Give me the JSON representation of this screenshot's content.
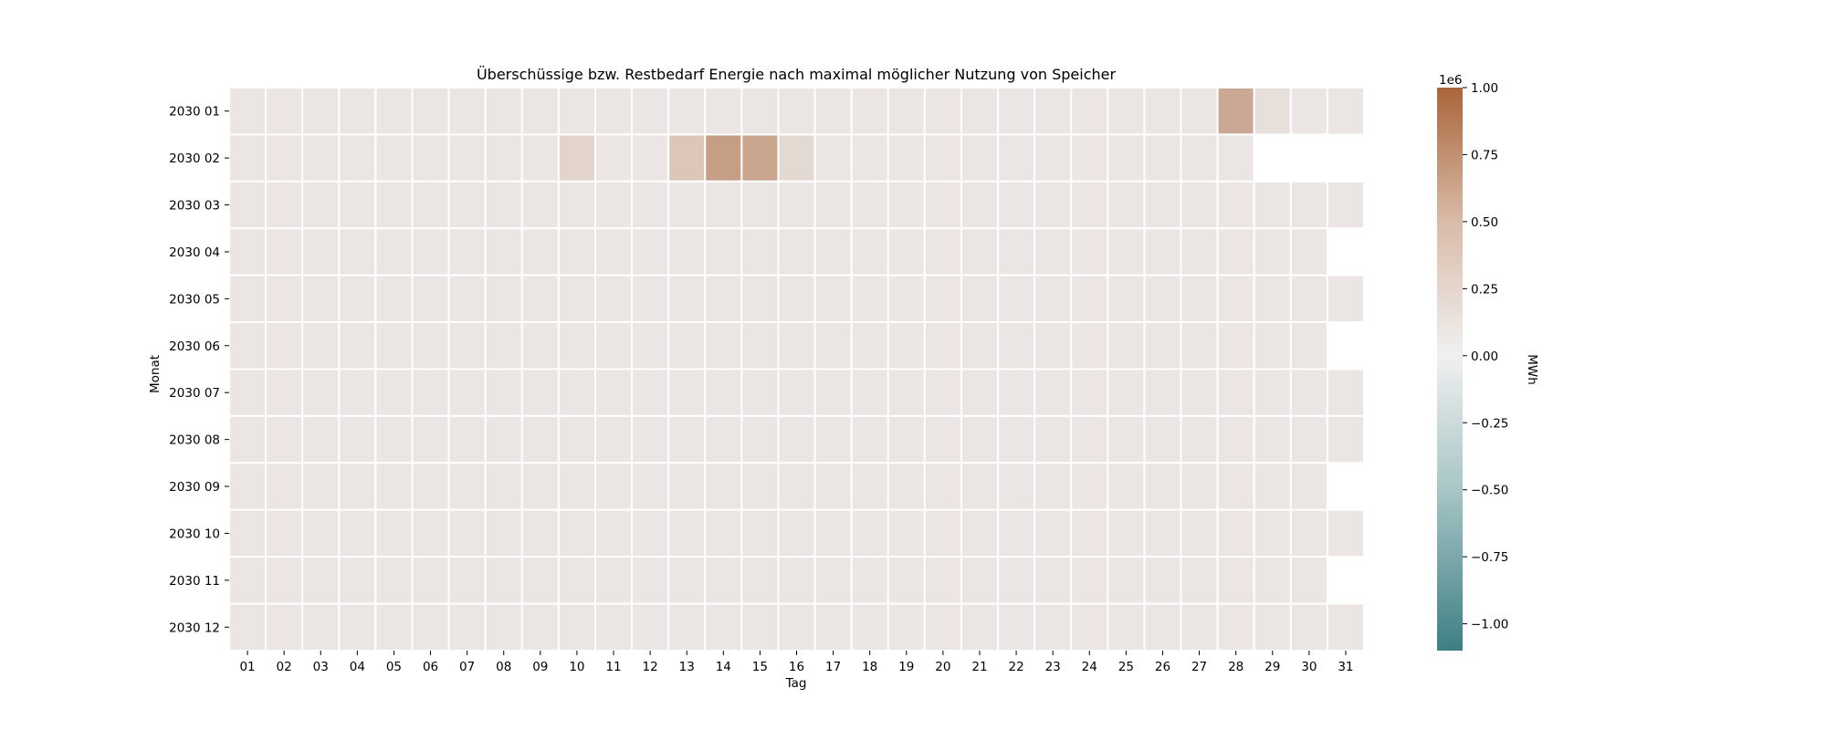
{
  "chart_data": {
    "type": "heatmap",
    "title": "Überschüssige bzw. Restbedarf Energie nach maximal möglicher Nutzung von Speicher",
    "xlabel": "Tag",
    "ylabel": "Monat",
    "x_categories": [
      "01",
      "02",
      "03",
      "04",
      "05",
      "06",
      "07",
      "08",
      "09",
      "10",
      "11",
      "12",
      "13",
      "14",
      "15",
      "16",
      "17",
      "18",
      "19",
      "20",
      "21",
      "22",
      "23",
      "24",
      "25",
      "26",
      "27",
      "28",
      "29",
      "30",
      "31"
    ],
    "y_categories": [
      "2030 01",
      "2030 02",
      "2030 03",
      "2030 04",
      "2030 05",
      "2030 06",
      "2030 07",
      "2030 08",
      "2030 09",
      "2030 10",
      "2030 11",
      "2030 12"
    ],
    "days_in_month": [
      31,
      28,
      31,
      30,
      31,
      30,
      31,
      31,
      30,
      31,
      30,
      31
    ],
    "nonzero_values": [
      {
        "month": "2030 01",
        "day": "28",
        "value": 480000
      },
      {
        "month": "2030 01",
        "day": "29",
        "value": 60000
      },
      {
        "month": "2030 02",
        "day": "10",
        "value": 140000
      },
      {
        "month": "2030 02",
        "day": "13",
        "value": 250000
      },
      {
        "month": "2030 02",
        "day": "14",
        "value": 560000
      },
      {
        "month": "2030 02",
        "day": "15",
        "value": 500000
      },
      {
        "month": "2030 02",
        "day": "16",
        "value": 100000
      }
    ],
    "default_value": 0,
    "colorbar": {
      "label": "MWh",
      "offset_text": "1e6",
      "vmin": -1.1,
      "vmax": 1.0,
      "ticks": [
        "1.00",
        "0.75",
        "0.50",
        "0.25",
        "0.00",
        "−0.25",
        "−0.50",
        "−0.75",
        "−1.00"
      ],
      "tick_values": [
        1.0,
        0.75,
        0.5,
        0.25,
        0.0,
        -0.25,
        -0.5,
        -0.75,
        -1.0
      ],
      "colors": {
        "negative": "#3e7f84",
        "zero": "#f0f0f0",
        "positive": "#a9653b"
      }
    }
  }
}
